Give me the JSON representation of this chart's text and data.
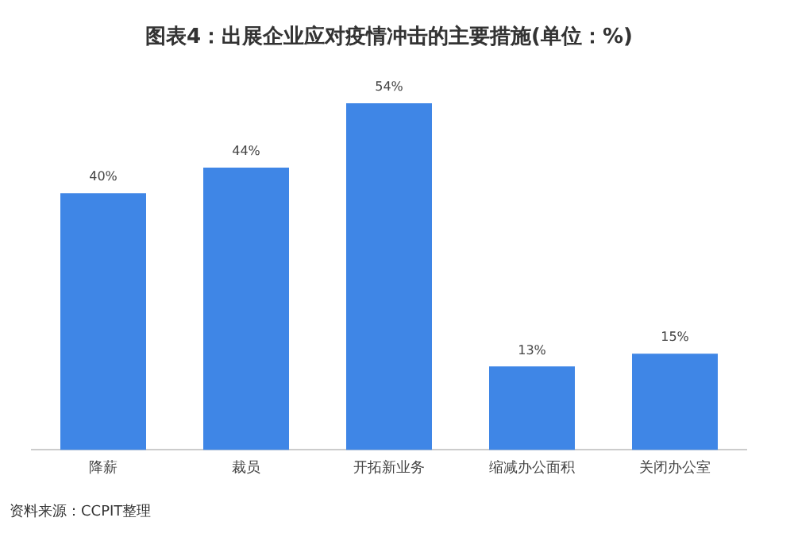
{
  "chart_data": {
    "type": "bar",
    "title": "图表4：出展企业应对疫情冲击的主要措施(单位：%)",
    "categories": [
      "降薪",
      "裁员",
      "开拓新业务",
      "缩减办公面积",
      "关闭办公室"
    ],
    "values": [
      40,
      44,
      54,
      13,
      15
    ],
    "color": "#3f86e6",
    "value_labels": [
      "40%",
      "44%",
      "54%",
      "13%",
      "15%"
    ],
    "grid": false,
    "legend": false,
    "annotations": [
      "资料来源：CCPIT整理"
    ]
  }
}
